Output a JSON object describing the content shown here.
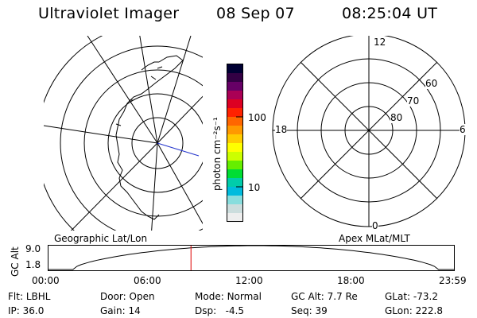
{
  "header": {
    "instrument": "Ultraviolet Imager",
    "date": "08 Sep 07",
    "time": "08:25:04 UT"
  },
  "left_panel": {
    "label": "Geographic Lat/Lon"
  },
  "right_panel": {
    "label": "Apex MLat/MLT",
    "mlt_labels": {
      "top": "12",
      "left": "18",
      "right": "6",
      "bottom": "0"
    },
    "lat_labels": [
      "60",
      "70",
      "80"
    ]
  },
  "colorbar": {
    "unit_label": "photon cm⁻²s⁻¹",
    "tick_labels": [
      "100",
      "10"
    ],
    "colors": [
      "#000033",
      "#330044",
      "#660066",
      "#aa0055",
      "#dd0022",
      "#ff2200",
      "#ff6600",
      "#ff9900",
      "#ffcc00",
      "#ffff00",
      "#ccff00",
      "#66ee00",
      "#00dd33",
      "#00ccaa",
      "#00bbdd",
      "#88dddd",
      "#ccdddd",
      "#eeeeee"
    ]
  },
  "altitude_plot": {
    "ylabel": "GC Alt",
    "y_ticks": [
      "9.0",
      "1.8"
    ],
    "x_ticks": [
      "00:00",
      "06:00",
      "12:00",
      "18:00",
      "23:59"
    ],
    "marker_time_hours": 8.418,
    "marker_color": "#dd0000"
  },
  "info": {
    "row1": [
      {
        "label": "Flt:",
        "value": "LBHL"
      },
      {
        "label": "Door:",
        "value": "Open"
      },
      {
        "label": "Mode:",
        "value": "Normal"
      },
      {
        "label": "GC Alt:",
        "value": "7.7 Re"
      },
      {
        "label": "GLat:",
        "value": "-73.2"
      }
    ],
    "row2": [
      {
        "label": "IP:",
        "value": "36.0"
      },
      {
        "label": "Gain:",
        "value": "14"
      },
      {
        "label": "Dsp:",
        "value": "-4.5"
      },
      {
        "label": "Seq:",
        "value": "39"
      },
      {
        "label": "GLon:",
        "value": "222.8"
      }
    ]
  }
}
